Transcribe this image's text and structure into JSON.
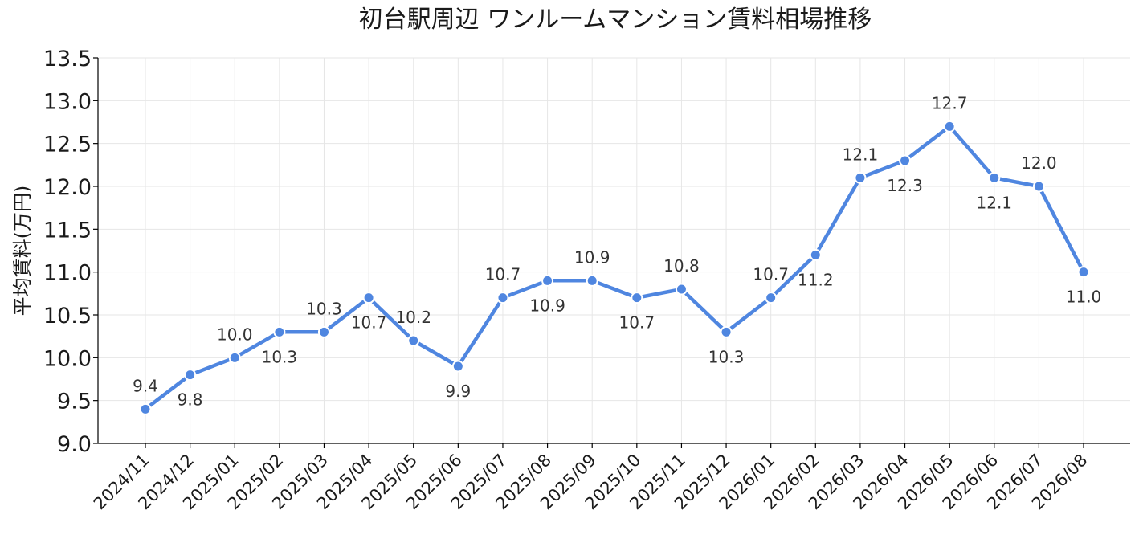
{
  "chart_data": {
    "type": "line",
    "title": "初台駅周辺 ワンルームマンション賃料相場推移",
    "xlabel": "",
    "ylabel": "平均賃料(万円)",
    "categories": [
      "2024/11",
      "2024/12",
      "2025/01",
      "2025/02",
      "2025/03",
      "2025/04",
      "2025/05",
      "2025/06",
      "2025/07",
      "2025/08",
      "2025/09",
      "2025/10",
      "2025/11",
      "2025/12",
      "2026/01",
      "2026/02",
      "2026/03",
      "2026/04",
      "2026/05",
      "2026/06",
      "2026/07",
      "2026/08"
    ],
    "series": [
      {
        "values": [
          9.4,
          9.8,
          10.0,
          10.3,
          10.3,
          10.7,
          10.2,
          9.9,
          10.7,
          10.9,
          10.9,
          10.7,
          10.8,
          10.3,
          10.7,
          11.2,
          12.1,
          12.3,
          12.7,
          12.1,
          12.0,
          11.0
        ],
        "color": "#4f86e0"
      }
    ],
    "data_labels": [
      "9.4",
      "9.8",
      "10.0",
      "10.3",
      "10.3",
      "10.7",
      "10.2",
      "9.9",
      "10.7",
      "10.9",
      "10.9",
      "10.7",
      "10.8",
      "10.3",
      "10.7",
      "11.2",
      "12.1",
      "12.3",
      "12.7",
      "12.1",
      "12.0",
      "11.0"
    ],
    "label_position": [
      "above",
      "below",
      "above",
      "below",
      "above",
      "below",
      "above",
      "below",
      "above",
      "below",
      "above",
      "below",
      "above",
      "below",
      "above",
      "below",
      "above",
      "below",
      "above",
      "below",
      "above",
      "below"
    ],
    "ylim": [
      9.0,
      13.5
    ],
    "yticks": [
      "9.0",
      "9.5",
      "10.0",
      "10.5",
      "11.0",
      "11.5",
      "12.0",
      "12.5",
      "13.0",
      "13.5"
    ],
    "grid": true,
    "legend": "none"
  }
}
